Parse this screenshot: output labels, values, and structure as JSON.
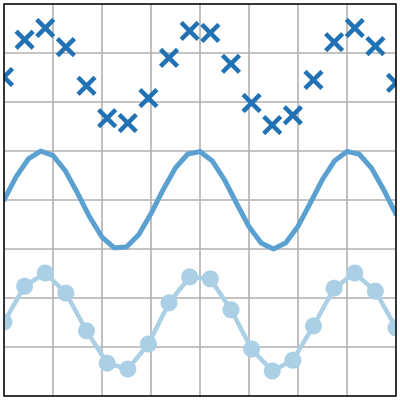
{
  "chart_data": {
    "type": "line",
    "xlim": [
      0,
      8
    ],
    "ylim": [
      0,
      8
    ],
    "xticks": [
      0,
      1,
      2,
      3,
      4,
      5,
      6,
      7,
      8
    ],
    "yticks": [
      0,
      1,
      2,
      3,
      4,
      5,
      6,
      7,
      8
    ],
    "grid": true,
    "x": [
      0,
      0.421,
      0.842,
      1.263,
      1.684,
      2.105,
      2.526,
      2.947,
      3.368,
      3.789,
      4.211,
      4.632,
      5.053,
      5.474,
      5.895,
      6.316,
      6.737,
      7.158,
      7.579,
      8
    ],
    "series": [
      {
        "color": "#2171b5",
        "marker": "x",
        "linestyle": "none",
        "values": [
          6.51,
          7.27,
          7.51,
          7.12,
          6.33,
          5.67,
          5.57,
          6.08,
          6.9,
          7.45,
          7.41,
          6.78,
          5.98,
          5.53,
          5.73,
          6.45,
          7.22,
          7.51,
          7.14,
          6.39
        ]
      },
      {
        "color": "#5aa0d0",
        "marker": "none",
        "linestyle": "solid",
        "x": [
          0,
          0.25,
          0.5,
          0.75,
          1,
          1.25,
          1.5,
          1.75,
          2,
          2.25,
          2.5,
          2.75,
          3,
          3.25,
          3.5,
          3.75,
          4,
          4.25,
          4.5,
          4.75,
          5,
          5.25,
          5.5,
          5.75,
          6,
          6.25,
          6.5,
          6.75,
          7,
          7.25,
          7.5,
          7.75,
          8
        ],
        "values": [
          4,
          4.479,
          4.841,
          4.997,
          4.909,
          4.598,
          4.141,
          3.649,
          3.243,
          3.022,
          3.041,
          3.294,
          3.721,
          4.215,
          4.657,
          4.938,
          4.989,
          4.798,
          4.412,
          3.925,
          3.456,
          3.12,
          3,
          3.125,
          3.463,
          3.934,
          4.42,
          4.803,
          4.991,
          4.935,
          4.65,
          4.207,
          3.712
        ]
      },
      {
        "color": "#abd0e6",
        "marker": "o",
        "linestyle": "solid",
        "values": [
          1.51,
          2.24,
          2.51,
          2.1,
          1.33,
          0.67,
          0.55,
          1.06,
          1.9,
          2.43,
          2.39,
          1.76,
          0.96,
          0.51,
          0.73,
          1.43,
          2.2,
          2.51,
          2.14,
          1.39
        ]
      }
    ]
  }
}
